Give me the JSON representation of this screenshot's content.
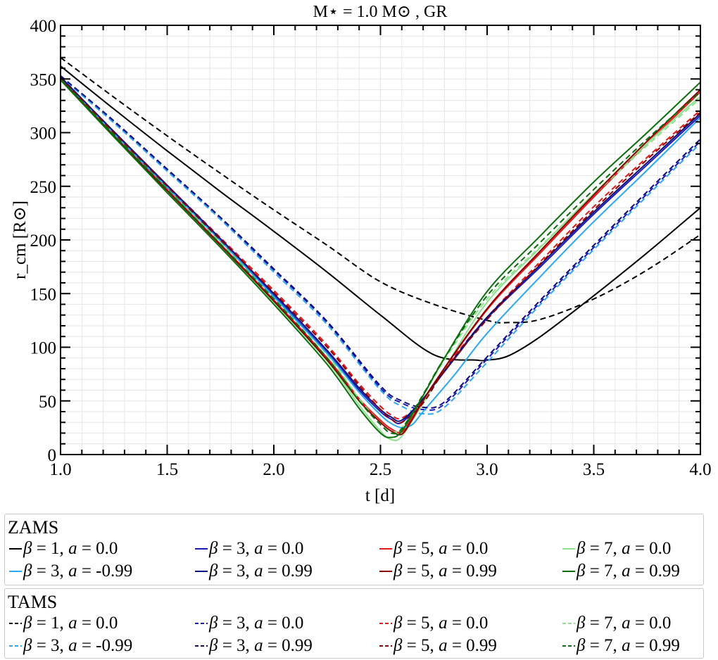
{
  "chart_data": {
    "type": "line",
    "title": "M⋆ = 1.0 M⊙ , GR",
    "xlabel": "t [d]",
    "ylabel": "r_cm [R⊙]",
    "xlim": [
      1.0,
      4.0
    ],
    "ylim": [
      0,
      400
    ],
    "x_ticks": [
      "1.0",
      "1.5",
      "2.0",
      "2.5",
      "3.0",
      "3.5",
      "4.0"
    ],
    "y_ticks": [
      "0",
      "50",
      "100",
      "150",
      "200",
      "250",
      "300",
      "350",
      "400"
    ],
    "grid": true,
    "legend": [
      {
        "title": "ZAMS",
        "entries": [
          {
            "beta": "1",
            "a": "0.0",
            "color": "#000000",
            "dashed": false
          },
          {
            "beta": "3",
            "a": "0.0",
            "color": "#1a1ab4",
            "dashed": false
          },
          {
            "beta": "5",
            "a": "0.0",
            "color": "#e01818",
            "dashed": false
          },
          {
            "beta": "7",
            "a": "0.0",
            "color": "#8fe08f",
            "dashed": false
          },
          {
            "beta": "3",
            "a": "-0.99",
            "color": "#2aa8f0",
            "dashed": false
          },
          {
            "beta": "3",
            "a": "0.99",
            "color": "#0d0d80",
            "dashed": false
          },
          {
            "beta": "5",
            "a": "0.99",
            "color": "#8b0000",
            "dashed": false
          },
          {
            "beta": "7",
            "a": "0.99",
            "color": "#0a6e0a",
            "dashed": false
          }
        ]
      },
      {
        "title": "TAMS",
        "entries": [
          {
            "beta": "1",
            "a": "0.0",
            "color": "#000000",
            "dashed": true
          },
          {
            "beta": "3",
            "a": "0.0",
            "color": "#1a1ab4",
            "dashed": true
          },
          {
            "beta": "5",
            "a": "0.0",
            "color": "#e01818",
            "dashed": true
          },
          {
            "beta": "7",
            "a": "0.0",
            "color": "#8fe08f",
            "dashed": true
          },
          {
            "beta": "3",
            "a": "-0.99",
            "color": "#2aa8f0",
            "dashed": true
          },
          {
            "beta": "3",
            "a": "0.99",
            "color": "#0d0d80",
            "dashed": true
          },
          {
            "beta": "5",
            "a": "0.99",
            "color": "#8b0000",
            "dashed": true
          },
          {
            "beta": "7",
            "a": "0.99",
            "color": "#0a6e0a",
            "dashed": true
          }
        ]
      }
    ],
    "series": [
      {
        "x": [
          1.0,
          1.25,
          1.5,
          1.75,
          2.0,
          2.25,
          2.5,
          2.75,
          2.95,
          3.0,
          3.1,
          3.25,
          3.5,
          3.75,
          4.0
        ],
        "y": [
          362,
          322,
          283,
          245,
          208,
          170,
          130,
          93,
          88,
          88,
          92,
          110,
          148,
          188,
          230
        ],
        "color": "#000000",
        "dashed": false
      },
      {
        "x": [
          1.0,
          1.25,
          1.5,
          1.75,
          2.0,
          2.25,
          2.5,
          2.75,
          3.0,
          3.1,
          3.25,
          3.5,
          3.75,
          4.0
        ],
        "y": [
          370,
          333,
          297,
          262,
          228,
          195,
          161,
          140,
          125,
          123,
          126,
          145,
          172,
          205
        ],
        "color": "#000000",
        "dashed": true
      },
      {
        "x": [
          1.0,
          1.25,
          1.5,
          1.75,
          2.0,
          2.25,
          2.4,
          2.5,
          2.55,
          2.6,
          2.7,
          2.85,
          3.0,
          3.25,
          3.5,
          3.75,
          4.0
        ],
        "y": [
          352,
          300,
          250,
          200,
          148,
          95,
          60,
          40,
          33,
          30,
          52,
          90,
          127,
          175,
          224,
          270,
          316
        ],
        "color": "#1a1ab4",
        "dashed": false
      },
      {
        "x": [
          1.0,
          1.25,
          1.5,
          1.75,
          2.0,
          2.25,
          2.5,
          2.6,
          2.7,
          2.8,
          3.0,
          3.25,
          3.5,
          3.75,
          4.0
        ],
        "y": [
          353,
          310,
          265,
          220,
          172,
          123,
          62,
          48,
          42,
          47,
          89,
          142,
          193,
          243,
          292
        ],
        "color": "#1a1ab4",
        "dashed": true
      },
      {
        "x": [
          1.0,
          1.25,
          1.5,
          1.75,
          2.0,
          2.25,
          2.4,
          2.5,
          2.55,
          2.6,
          2.65,
          2.75,
          3.0,
          3.25,
          3.5,
          3.75,
          4.0
        ],
        "y": [
          350,
          298,
          247,
          196,
          144,
          90,
          52,
          32,
          24,
          21,
          35,
          66,
          135,
          188,
          240,
          290,
          338
        ],
        "color": "#e01818",
        "dashed": false
      },
      {
        "x": [
          1.0,
          1.25,
          1.5,
          1.75,
          2.0,
          2.25,
          2.4,
          2.5,
          2.55,
          2.6,
          2.7,
          2.8,
          3.0,
          3.25,
          3.5,
          3.75,
          4.0
        ],
        "y": [
          351,
          301,
          251,
          202,
          153,
          102,
          66,
          45,
          37,
          34,
          50,
          80,
          128,
          180,
          231,
          277,
          321
        ],
        "color": "#e01818",
        "dashed": true
      },
      {
        "x": [
          1.0,
          1.25,
          1.5,
          1.75,
          2.0,
          2.25,
          2.4,
          2.5,
          2.55,
          2.6,
          2.7,
          2.8,
          3.0,
          3.25,
          3.5,
          3.75,
          4.0
        ],
        "y": [
          350,
          297,
          246,
          195,
          142,
          87,
          46,
          22,
          14,
          17,
          48,
          80,
          142,
          193,
          243,
          290,
          334
        ],
        "color": "#8fe08f",
        "dashed": false
      },
      {
        "x": [
          1.0,
          1.25,
          1.5,
          1.75,
          2.0,
          2.25,
          2.4,
          2.5,
          2.55,
          2.6,
          2.7,
          2.8,
          3.0,
          3.25,
          3.5,
          3.75,
          4.0
        ],
        "y": [
          351,
          299,
          248,
          198,
          147,
          93,
          52,
          30,
          22,
          25,
          55,
          88,
          145,
          194,
          242,
          288,
          332
        ],
        "color": "#8fe08f",
        "dashed": true
      },
      {
        "x": [
          1.0,
          1.25,
          1.5,
          1.75,
          2.0,
          2.25,
          2.4,
          2.5,
          2.55,
          2.6,
          2.65,
          2.7,
          2.85,
          3.0,
          3.25,
          3.5,
          3.75,
          4.0
        ],
        "y": [
          351,
          299,
          249,
          199,
          147,
          94,
          58,
          37,
          29,
          25,
          28,
          40,
          75,
          113,
          166,
          217,
          265,
          314
        ],
        "color": "#2aa8f0",
        "dashed": false
      },
      {
        "x": [
          1.0,
          1.25,
          1.5,
          1.75,
          2.0,
          2.25,
          2.5,
          2.6,
          2.7,
          2.8,
          3.0,
          3.25,
          3.5,
          3.75,
          4.0
        ],
        "y": [
          352,
          309,
          264,
          219,
          170,
          121,
          60,
          45,
          38,
          44,
          86,
          140,
          191,
          241,
          290
        ],
        "color": "#2aa8f0",
        "dashed": true
      },
      {
        "x": [
          1.0,
          1.25,
          1.5,
          1.75,
          2.0,
          2.25,
          2.4,
          2.5,
          2.55,
          2.6,
          2.7,
          2.85,
          3.0,
          3.25,
          3.5,
          3.75,
          4.0
        ],
        "y": [
          352,
          301,
          251,
          201,
          150,
          97,
          62,
          42,
          35,
          32,
          52,
          91,
          128,
          177,
          226,
          272,
          318
        ],
        "color": "#0d0d80",
        "dashed": false
      },
      {
        "x": [
          1.0,
          1.25,
          1.5,
          1.75,
          2.0,
          2.25,
          2.5,
          2.6,
          2.7,
          2.8,
          3.0,
          3.25,
          3.5,
          3.75,
          4.0
        ],
        "y": [
          353,
          311,
          266,
          221,
          173,
          124,
          64,
          50,
          44,
          49,
          91,
          144,
          195,
          245,
          294
        ],
        "color": "#0d0d80",
        "dashed": true
      },
      {
        "x": [
          1.0,
          1.25,
          1.5,
          1.75,
          2.0,
          2.25,
          2.4,
          2.5,
          2.55,
          2.6,
          2.65,
          2.75,
          3.0,
          3.25,
          3.5,
          3.75,
          4.0
        ],
        "y": [
          350,
          297,
          246,
          195,
          143,
          88,
          50,
          30,
          22,
          19,
          33,
          66,
          136,
          190,
          242,
          292,
          340
        ],
        "color": "#8b0000",
        "dashed": false
      },
      {
        "x": [
          1.0,
          1.25,
          1.5,
          1.75,
          2.0,
          2.25,
          2.4,
          2.5,
          2.55,
          2.6,
          2.7,
          2.8,
          3.0,
          3.25,
          3.5,
          3.75,
          4.0
        ],
        "y": [
          351,
          300,
          250,
          200,
          151,
          100,
          64,
          42,
          33,
          30,
          48,
          78,
          126,
          178,
          228,
          275,
          319
        ],
        "color": "#8b0000",
        "dashed": true
      },
      {
        "x": [
          1.0,
          1.25,
          1.5,
          1.75,
          2.0,
          2.25,
          2.4,
          2.5,
          2.55,
          2.6,
          2.7,
          2.8,
          3.0,
          3.25,
          3.5,
          3.75,
          4.0
        ],
        "y": [
          349,
          296,
          244,
          193,
          140,
          84,
          43,
          20,
          16,
          22,
          55,
          90,
          152,
          204,
          254,
          300,
          347
        ],
        "color": "#0a6e0a",
        "dashed": false
      },
      {
        "x": [
          1.0,
          1.25,
          1.5,
          1.75,
          2.0,
          2.25,
          2.4,
          2.5,
          2.55,
          2.6,
          2.7,
          2.8,
          3.0,
          3.25,
          3.5,
          3.75,
          4.0
        ],
        "y": [
          350,
          298,
          247,
          196,
          145,
          90,
          50,
          28,
          20,
          24,
          56,
          90,
          148,
          198,
          247,
          294,
          338
        ],
        "color": "#0a6e0a",
        "dashed": true
      }
    ]
  }
}
